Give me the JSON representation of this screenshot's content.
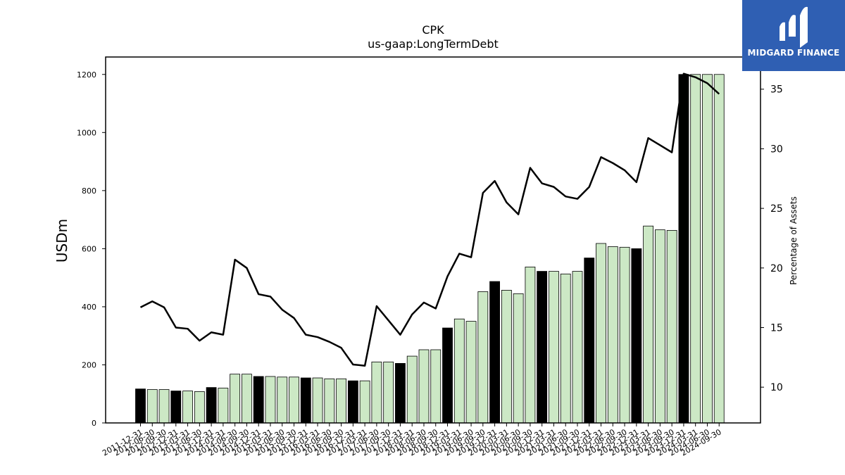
{
  "title": "CPK",
  "subtitle": "us-gaap:LongTermDebt",
  "logo": {
    "text": "MIDGARD FINANCE",
    "color": "#2f5fb3"
  },
  "chart_data": {
    "type": "bar",
    "x": [
      "2011-12-31",
      "2012-06-30",
      "2012-09-30",
      "2012-12-31",
      "2013-03-31",
      "2013-06-30",
      "2013-12-31",
      "2014-03-31",
      "2014-06-30",
      "2014-09-30",
      "2014-12-31",
      "2015-03-31",
      "2015-06-30",
      "2015-09-30",
      "2015-12-31",
      "2016-03-31",
      "2016-06-30",
      "2016-09-30",
      "2016-12-31",
      "2017-03-31",
      "2017-06-30",
      "2017-09-30",
      "2017-12-31",
      "2018-03-31",
      "2018-06-30",
      "2018-09-30",
      "2018-12-31",
      "2019-03-31",
      "2019-06-30",
      "2019-09-30",
      "2019-12-31",
      "2020-03-31",
      "2020-06-30",
      "2020-09-30",
      "2020-12-31",
      "2021-03-31",
      "2021-06-30",
      "2021-09-30",
      "2021-12-31",
      "2022-03-31",
      "2022-06-30",
      "2022-09-30",
      "2022-12-31",
      "2023-03-31",
      "2023-06-30",
      "2023-09-30",
      "2023-12-31",
      "2024-03-31",
      "2024-06-30",
      "2024-09-30"
    ],
    "tick_labels": [
      "2011-12-31",
      "2012-06-30",
      "2012-09-30",
      "2012-12-31",
      "2013-03-31",
      "2013-06-30",
      "2013-12-31",
      "2014-03-31",
      "2014-06-30",
      "2014-09-30",
      "2014-12-31",
      "2015-03-31",
      "2015-06-30",
      "2015-09-30",
      "2015-12-31",
      "2016-03-31",
      "2016-06-30",
      "2016-09-30",
      "2016-12-31",
      "2017-03-31",
      "2017-06-30",
      "2017-09-30",
      "2017-12-31",
      "2018-03-31",
      "2018-06-30",
      "2018-09-30",
      "2018-12-31",
      "2019-03-31",
      "2019-06-30",
      "2019-09-30",
      "2019-12-31",
      "2020-03-31",
      "2020-06-30",
      "2020-09-30",
      "2020-12-31",
      "2021-03-31",
      "2021-06-30",
      "2021-09-30",
      "2021-12-31",
      "2022-03-31",
      "2022-06-30",
      "2022-09-30",
      "2022-12-31",
      "2023-03-31",
      "2023-06-30",
      "2023-09-30",
      "2023-12-31",
      "2024-03-31",
      "2024-06-30",
      "2024-09-30"
    ],
    "series": [
      {
        "axis": "left",
        "type": "bar",
        "values": [
          117,
          115,
          115,
          110,
          110,
          108,
          122,
          120,
          168,
          168,
          160,
          160,
          158,
          158,
          155,
          155,
          152,
          152,
          145,
          145,
          210,
          210,
          205,
          230,
          252,
          252,
          327,
          358,
          350,
          452,
          487,
          457,
          445,
          537,
          522,
          522,
          513,
          522,
          568,
          618,
          607,
          605,
          600,
          678,
          665,
          663,
          1200,
          1200,
          1200,
          1200
        ],
        "highlight": [
          true,
          false,
          false,
          true,
          false,
          false,
          true,
          false,
          false,
          false,
          true,
          false,
          false,
          false,
          true,
          false,
          false,
          false,
          true,
          false,
          false,
          false,
          true,
          false,
          false,
          false,
          true,
          false,
          false,
          false,
          true,
          false,
          false,
          false,
          true,
          false,
          false,
          false,
          true,
          false,
          false,
          false,
          true,
          false,
          false,
          false,
          true,
          false,
          false,
          false
        ],
        "color_highlight": "#000000",
        "color_normal": "#cce8c5"
      },
      {
        "axis": "right",
        "type": "line",
        "color": "#000000",
        "values": [
          16.7,
          17.2,
          16.7,
          15.0,
          14.9,
          13.9,
          14.6,
          14.4,
          20.7,
          20.0,
          17.8,
          17.6,
          16.5,
          15.8,
          14.4,
          14.2,
          13.8,
          13.3,
          11.9,
          11.8,
          16.8,
          15.6,
          14.4,
          16.1,
          17.1,
          16.6,
          19.3,
          21.2,
          20.9,
          26.3,
          27.3,
          25.5,
          24.5,
          28.4,
          27.1,
          26.8,
          26.0,
          25.8,
          26.8,
          29.3,
          28.8,
          28.2,
          27.2,
          30.9,
          30.3,
          29.7,
          36.3,
          36.0,
          35.5,
          34.6
        ]
      }
    ],
    "ylabel": "USDm",
    "ylabel_right": "Percentage of Assets",
    "ylim": [
      0,
      1260
    ],
    "ylim_right": [
      7,
      37.7
    ],
    "yticks": [
      "0",
      "200",
      "400",
      "600",
      "800",
      "1000",
      "1200"
    ],
    "yticks_right": [
      "10",
      "15",
      "20",
      "25",
      "30",
      "35"
    ],
    "grid": false
  }
}
